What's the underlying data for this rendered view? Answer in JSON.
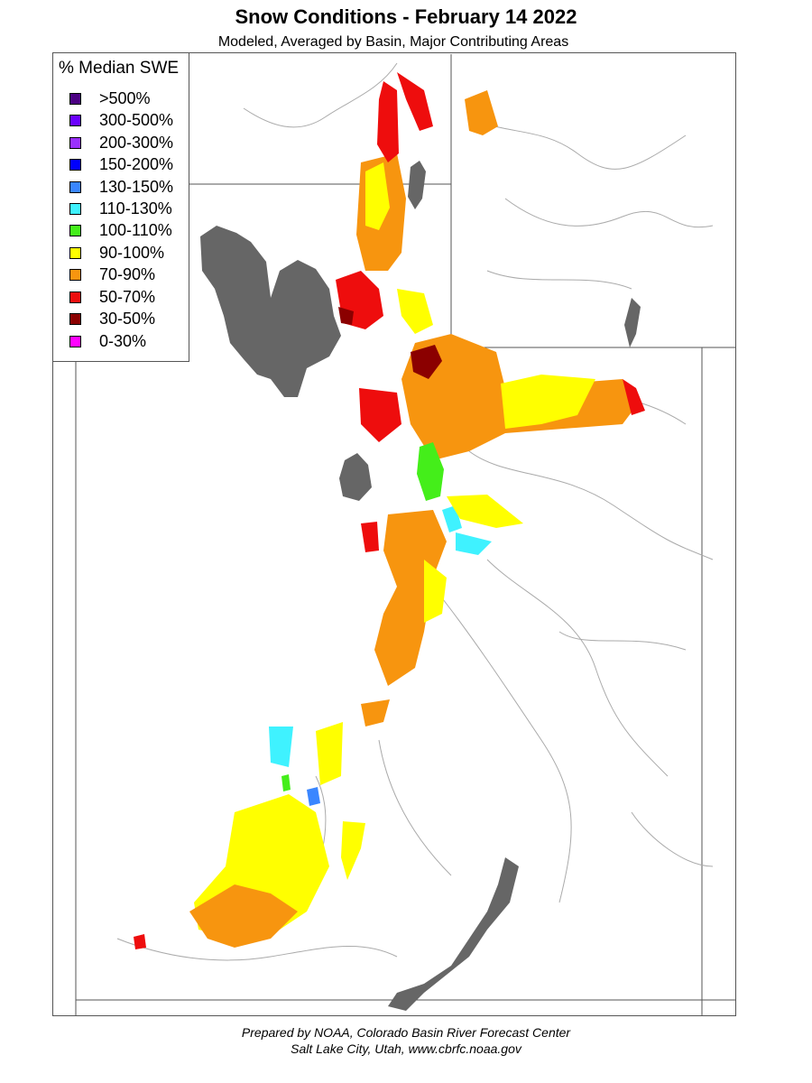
{
  "title": "Snow Conditions - February 14 2022",
  "subtitle": "Modeled, Averaged by Basin, Major Contributing Areas",
  "legend": {
    "title": "% Median SWE",
    "items": [
      {
        "label": ">500%",
        "color": "#4b0082"
      },
      {
        "label": "300-500%",
        "color": "#6a00ff"
      },
      {
        "label": "200-300%",
        "color": "#9b30ff"
      },
      {
        "label": "150-200%",
        "color": "#0000ff"
      },
      {
        "label": "130-150%",
        "color": "#3a86ff"
      },
      {
        "label": "110-130%",
        "color": "#3ff2ff"
      },
      {
        "label": "100-110%",
        "color": "#44ee1a"
      },
      {
        "label": "90-100%",
        "color": "#ffff00"
      },
      {
        "label": "70-90%",
        "color": "#f7950f"
      },
      {
        "label": "50-70%",
        "color": "#ee0d0d"
      },
      {
        "label": "30-50%",
        "color": "#8b0000"
      },
      {
        "label": "0-30%",
        "color": "#ff00ff"
      }
    ]
  },
  "map": {
    "water_color": "#666666",
    "boundary_color": "#999999"
  },
  "credits": {
    "line1": "Prepared by NOAA, Colorado Basin River Forecast Center",
    "line2": "Salt Lake City, Utah, www.cbrfc.noaa.gov"
  }
}
